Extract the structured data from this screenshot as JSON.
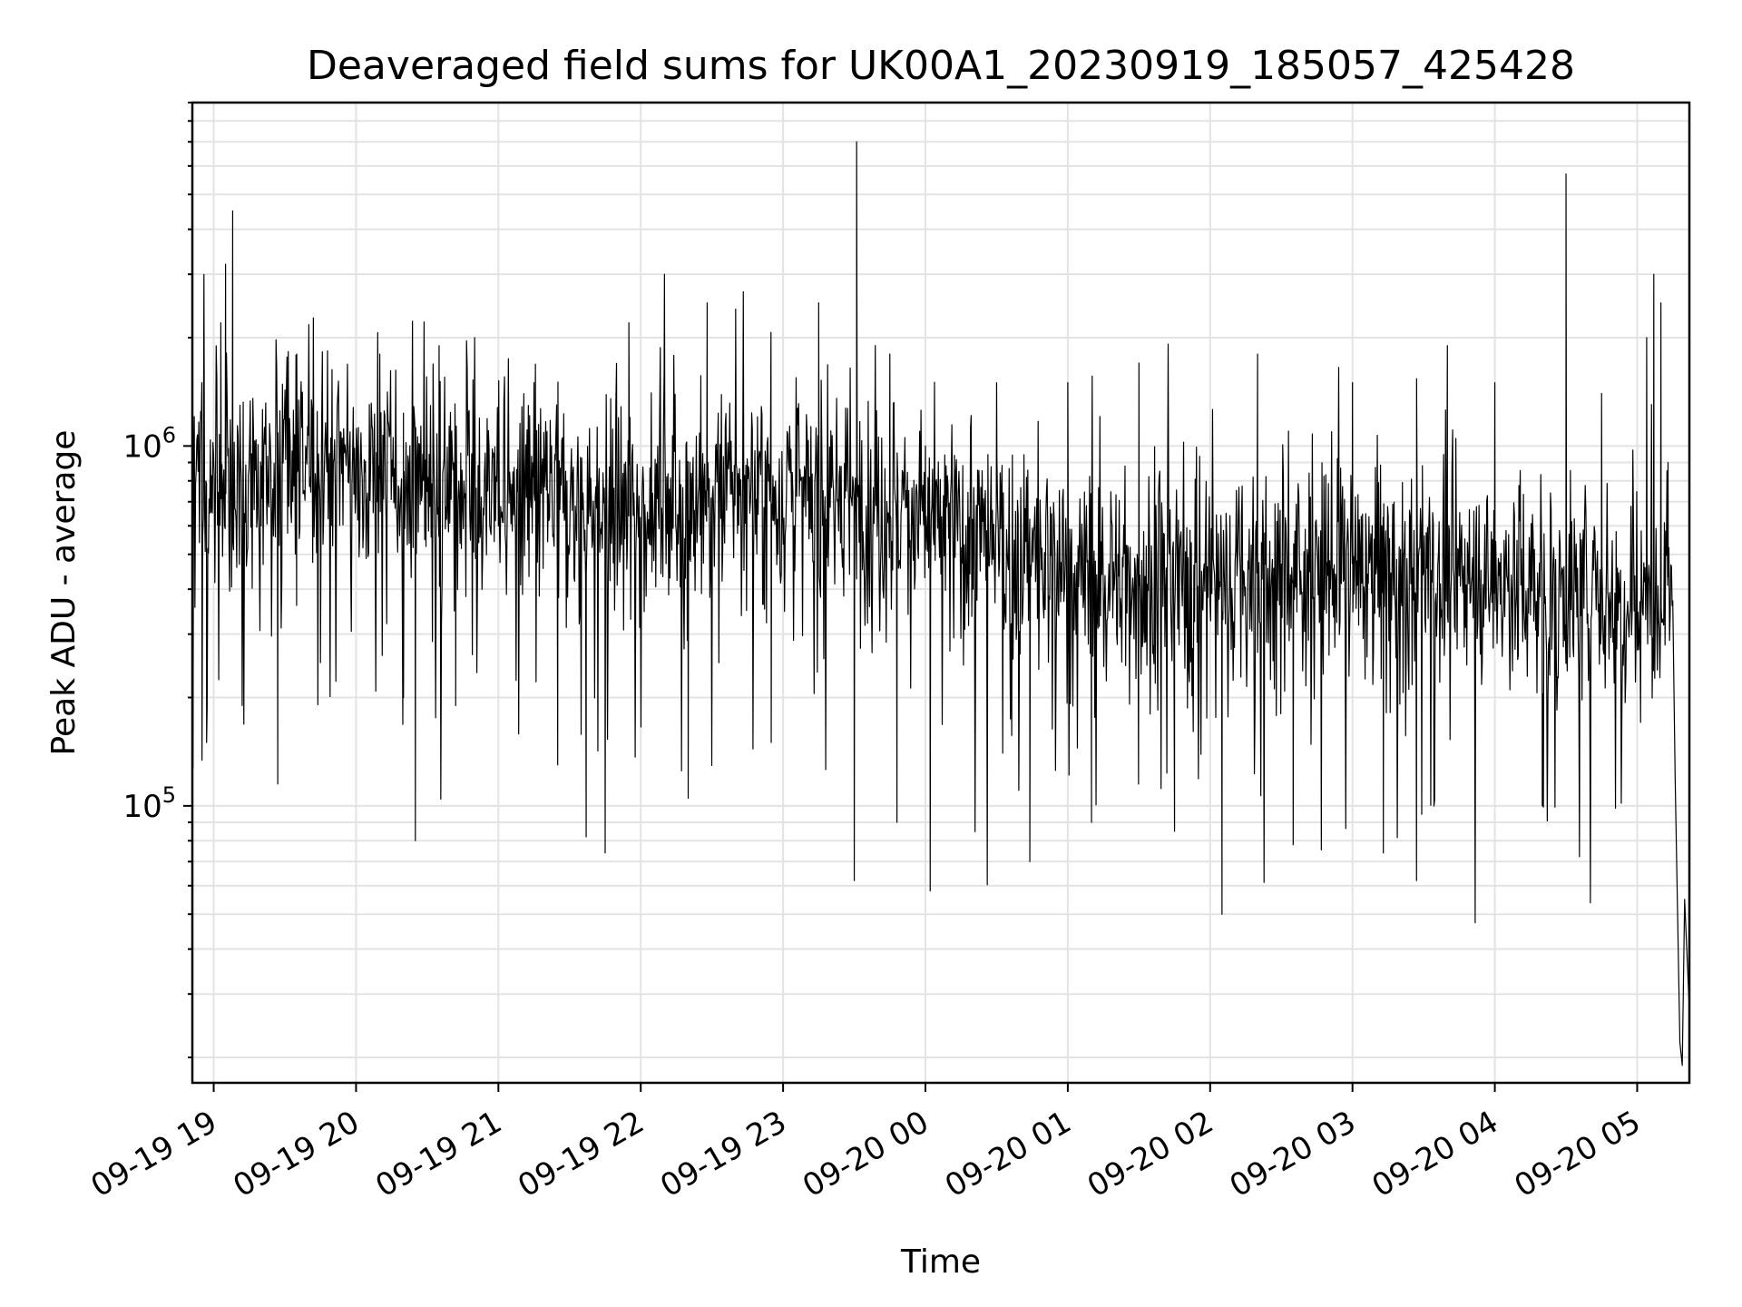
{
  "chart_data": {
    "type": "line",
    "title": "Deaveraged field sums for UK00A1_20230919_185057_425428",
    "xlabel": "Time",
    "ylabel": "Peak ADU - average",
    "yscale": "log",
    "ylim": [
      17000,
      9000000
    ],
    "xlim": [
      "2023-09-19 18:51",
      "2023-09-20 05:22"
    ],
    "grid": true,
    "line_color": "#000000",
    "x_ticks": [
      {
        "t": "2023-09-19 19:00",
        "label": "09-19 19"
      },
      {
        "t": "2023-09-19 20:00",
        "label": "09-19 20"
      },
      {
        "t": "2023-09-19 21:00",
        "label": "09-19 21"
      },
      {
        "t": "2023-09-19 22:00",
        "label": "09-19 22"
      },
      {
        "t": "2023-09-19 23:00",
        "label": "09-19 23"
      },
      {
        "t": "2023-09-20 00:00",
        "label": "09-20 00"
      },
      {
        "t": "2023-09-20 01:00",
        "label": "09-20 01"
      },
      {
        "t": "2023-09-20 02:00",
        "label": "09-20 02"
      },
      {
        "t": "2023-09-20 03:00",
        "label": "09-20 03"
      },
      {
        "t": "2023-09-20 04:00",
        "label": "09-20 04"
      },
      {
        "t": "2023-09-20 05:00",
        "label": "09-20 05"
      }
    ],
    "y_ticks": [
      {
        "value": 100000,
        "base": "10",
        "exp": "5"
      },
      {
        "value": 1000000,
        "base": "10",
        "exp": "6"
      }
    ],
    "series": [
      {
        "values": [
          [
            "2023-09-19 18:51",
            800000
          ],
          [
            "2023-09-19 18:55",
            1500000
          ],
          [
            "2023-09-19 18:57",
            150000
          ],
          [
            "2023-09-19 19:03",
            2200000
          ],
          [
            "2023-09-19 19:05",
            3200000
          ],
          [
            "2023-09-19 19:08",
            4500000
          ],
          [
            "2023-09-19 19:12",
            190000
          ],
          [
            "2023-09-19 19:20",
            600000
          ],
          [
            "2023-09-19 19:27",
            115000
          ],
          [
            "2023-09-19 19:35",
            1800000
          ],
          [
            "2023-09-19 19:45",
            250000
          ],
          [
            "2023-09-19 20:00",
            900000
          ],
          [
            "2023-09-19 20:10",
            1800000
          ],
          [
            "2023-09-19 20:20",
            200000
          ],
          [
            "2023-09-19 20:25",
            80000
          ],
          [
            "2023-09-19 20:35",
            1900000
          ],
          [
            "2023-09-19 20:42",
            190000
          ],
          [
            "2023-09-19 20:50",
            2000000
          ],
          [
            "2023-09-19 21:00",
            600000
          ],
          [
            "2023-09-19 21:15",
            1500000
          ],
          [
            "2023-09-19 21:25",
            130000
          ],
          [
            "2023-09-19 21:37",
            82000
          ],
          [
            "2023-09-19 21:45",
            74000
          ],
          [
            "2023-09-19 21:55",
            2200000
          ],
          [
            "2023-09-19 22:10",
            3000000
          ],
          [
            "2023-09-19 22:20",
            105000
          ],
          [
            "2023-09-19 22:28",
            2500000
          ],
          [
            "2023-09-19 22:40",
            2400000
          ],
          [
            "2023-09-19 22:55",
            150000
          ],
          [
            "2023-09-19 23:15",
            2500000
          ],
          [
            "2023-09-19 23:30",
            62000
          ],
          [
            "2023-09-19 23:31",
            7000000
          ],
          [
            "2023-09-19 23:45",
            1800000
          ],
          [
            "2023-09-19 23:48",
            90000
          ],
          [
            "2023-09-20 00:00",
            1000000
          ],
          [
            "2023-09-20 00:02",
            58000
          ],
          [
            "2023-09-20 00:30",
            1500000
          ],
          [
            "2023-09-20 00:44",
            70000
          ],
          [
            "2023-09-20 01:00",
            1500000
          ],
          [
            "2023-09-20 01:10",
            90000
          ],
          [
            "2023-09-20 01:30",
            1700000
          ],
          [
            "2023-09-20 01:45",
            85000
          ],
          [
            "2023-09-20 02:05",
            50000
          ],
          [
            "2023-09-20 02:20",
            1800000
          ],
          [
            "2023-09-20 02:35",
            78000
          ],
          [
            "2023-09-20 03:00",
            1500000
          ],
          [
            "2023-09-20 03:13",
            74000
          ],
          [
            "2023-09-20 03:27",
            62000
          ],
          [
            "2023-09-20 03:40",
            1900000
          ],
          [
            "2023-09-20 04:00",
            1500000
          ],
          [
            "2023-09-20 04:20",
            100000
          ],
          [
            "2023-09-20 04:30",
            5700000
          ],
          [
            "2023-09-20 04:45",
            1400000
          ],
          [
            "2023-09-20 04:58",
            550000
          ],
          [
            "2023-09-20 05:04",
            2000000
          ],
          [
            "2023-09-20 05:07",
            3000000
          ],
          [
            "2023-09-20 05:10",
            2500000
          ],
          [
            "2023-09-20 05:13",
            900000
          ],
          [
            "2023-09-20 05:16",
            120000
          ],
          [
            "2023-09-20 05:18",
            22000
          ],
          [
            "2023-09-20 05:19",
            19000
          ],
          [
            "2023-09-20 05:20",
            55000
          ],
          [
            "2023-09-20 05:22",
            27000
          ]
        ]
      }
    ]
  }
}
